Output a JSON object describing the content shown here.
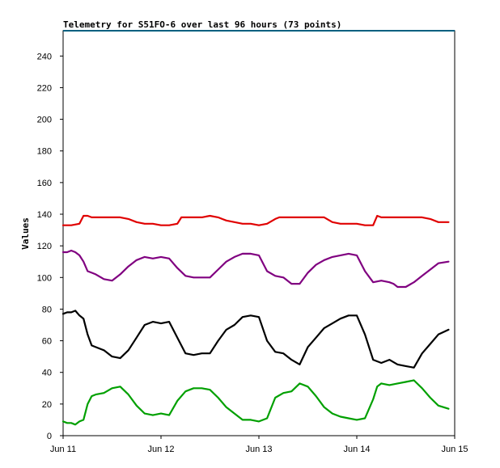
{
  "chart_data": {
    "type": "line",
    "title": "Telemetry for S51FO-6 over last 96 hours (73 points)",
    "xlabel": "",
    "ylabel": "Values",
    "ylim": [
      0,
      256
    ],
    "yticks": [
      0,
      20,
      40,
      60,
      80,
      100,
      120,
      140,
      160,
      180,
      200,
      220,
      240
    ],
    "xlim_hours": [
      0,
      96
    ],
    "xtick_labels": [
      "Jun 11",
      "Jun 12",
      "Jun 13",
      "Jun 14",
      "Jun 15"
    ],
    "xtick_hours": [
      0,
      24,
      48,
      72,
      96
    ],
    "grid": false,
    "colors": {
      "red": "#e00000",
      "purple": "#800080",
      "black": "#000000",
      "green": "#00a000",
      "top_line": "#006080"
    },
    "series": [
      {
        "color": "red",
        "x": [
          0,
          2,
          4,
          5,
          6,
          7,
          8,
          10,
          12,
          14,
          16,
          18,
          20,
          22,
          24,
          26,
          28,
          29,
          30,
          32,
          34,
          36,
          38,
          39,
          40,
          42,
          44,
          46,
          48,
          50,
          52,
          53,
          54,
          56,
          58,
          60,
          62,
          64,
          66,
          68,
          70,
          72,
          74,
          76,
          77,
          78,
          80,
          82,
          84,
          86,
          88,
          90,
          92,
          94.5
        ],
        "values": [
          133,
          133,
          134,
          139,
          139,
          138,
          138,
          138,
          138,
          138,
          137,
          135,
          134,
          134,
          133,
          133,
          134,
          138,
          138,
          138,
          138,
          139,
          138,
          137,
          136,
          135,
          134,
          134,
          133,
          134,
          137,
          138,
          138,
          138,
          138,
          138,
          138,
          138,
          135,
          134,
          134,
          134,
          133,
          133,
          139,
          138,
          138,
          138,
          138,
          138,
          138,
          137,
          135,
          135
        ]
      },
      {
        "color": "purple",
        "x": [
          0,
          1,
          2,
          3,
          4,
          5,
          6,
          7,
          8,
          10,
          12,
          14,
          16,
          18,
          20,
          22,
          24,
          26,
          28,
          30,
          32,
          34,
          36,
          38,
          40,
          42,
          44,
          46,
          48,
          50,
          52,
          54,
          56,
          58,
          60,
          62,
          64,
          66,
          68,
          70,
          72,
          74,
          76,
          78,
          80,
          81,
          82,
          84,
          86,
          88,
          90,
          92,
          94.5
        ],
        "values": [
          116,
          116,
          117,
          116,
          114,
          110,
          104,
          103,
          102,
          99,
          98,
          102,
          107,
          111,
          113,
          112,
          113,
          112,
          106,
          101,
          100,
          100,
          100,
          105,
          110,
          113,
          115,
          115,
          114,
          104,
          101,
          100,
          96,
          96,
          103,
          108,
          111,
          113,
          114,
          115,
          114,
          104,
          97,
          98,
          97,
          96,
          94,
          94,
          97,
          101,
          105,
          109,
          110
        ]
      },
      {
        "color": "black",
        "x": [
          0,
          1,
          2,
          3,
          4,
          5,
          6,
          7,
          8,
          10,
          12,
          14,
          16,
          18,
          20,
          22,
          24,
          26,
          28,
          30,
          32,
          34,
          36,
          38,
          40,
          42,
          44,
          46,
          48,
          50,
          52,
          54,
          56,
          58,
          60,
          62,
          64,
          66,
          68,
          70,
          72,
          74,
          76,
          78,
          80,
          82,
          84,
          86,
          88,
          90,
          92,
          94.5
        ],
        "values": [
          77,
          78,
          78,
          79,
          76,
          74,
          64,
          57,
          56,
          54,
          50,
          49,
          54,
          62,
          70,
          72,
          71,
          72,
          62,
          52,
          51,
          52,
          52,
          60,
          67,
          70,
          75,
          76,
          75,
          60,
          53,
          52,
          48,
          45,
          56,
          62,
          68,
          71,
          74,
          76,
          76,
          64,
          48,
          46,
          48,
          45,
          44,
          43,
          52,
          58,
          64,
          67
        ]
      },
      {
        "color": "green",
        "x": [
          0,
          1,
          2,
          3,
          4,
          5,
          6,
          7,
          8,
          10,
          12,
          14,
          16,
          18,
          20,
          22,
          24,
          26,
          28,
          30,
          32,
          34,
          36,
          38,
          40,
          42,
          44,
          46,
          48,
          50,
          52,
          54,
          56,
          58,
          60,
          62,
          64,
          66,
          68,
          70,
          72,
          74,
          76,
          77,
          78,
          80,
          82,
          84,
          86,
          88,
          90,
          92,
          94.5
        ],
        "values": [
          9,
          8,
          8,
          7,
          9,
          10,
          20,
          25,
          26,
          27,
          30,
          31,
          26,
          19,
          14,
          13,
          14,
          13,
          22,
          28,
          30,
          30,
          29,
          24,
          18,
          14,
          10,
          10,
          9,
          11,
          24,
          27,
          28,
          33,
          31,
          25,
          18,
          14,
          12,
          11,
          10,
          11,
          23,
          31,
          33,
          32,
          33,
          34,
          35,
          30,
          24,
          19,
          17
        ]
      }
    ],
    "top_line": {
      "color": "top_line",
      "value": 256
    }
  }
}
